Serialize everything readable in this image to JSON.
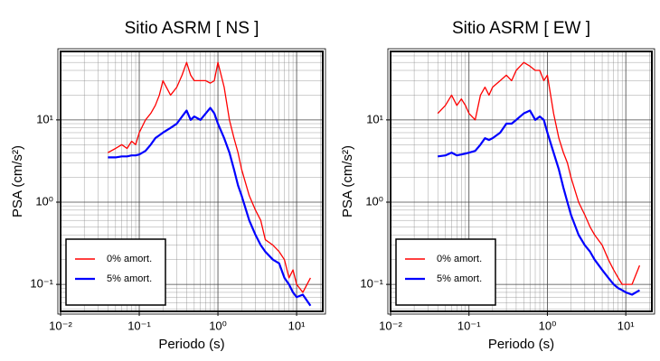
{
  "chart_data": [
    {
      "type": "line",
      "title": "Sitio ASRM [ NS ]",
      "xlabel": "Periodo (s)",
      "ylabel": "PSA (cm/s²)",
      "xscale": "log",
      "yscale": "log",
      "grid": true,
      "minor_grid": true,
      "legend": "lower left",
      "xlim": [
        0.01,
        21.5
      ],
      "ylim": [
        0.047,
        68
      ],
      "xticks": [
        {
          "value": 0.01,
          "label": "10⁻²"
        },
        {
          "value": 0.1,
          "label": "10⁻¹"
        },
        {
          "value": 1,
          "label": "10⁰"
        },
        {
          "value": 10,
          "label": "10¹"
        }
      ],
      "yticks": [
        {
          "value": 0.1,
          "label": "10⁻¹"
        },
        {
          "value": 1,
          "label": "10⁰"
        },
        {
          "value": 10,
          "label": "10¹"
        }
      ],
      "x": [
        0.04,
        0.05,
        0.06,
        0.07,
        0.08,
        0.09,
        0.1,
        0.12,
        0.14,
        0.16,
        0.18,
        0.2,
        0.25,
        0.3,
        0.35,
        0.4,
        0.45,
        0.5,
        0.6,
        0.7,
        0.8,
        0.9,
        1.0,
        1.2,
        1.4,
        1.6,
        1.8,
        2.0,
        2.5,
        3.0,
        3.5,
        4.0,
        5.0,
        6.0,
        7.0,
        8.0,
        9.0,
        10,
        12,
        15
      ],
      "series": [
        {
          "name": "0% amort.",
          "color": "#ff0000",
          "values": [
            4,
            4.5,
            5,
            4.5,
            5.5,
            5,
            7,
            10,
            12,
            15,
            20,
            30,
            20,
            25,
            35,
            50,
            35,
            30,
            30,
            30,
            28,
            30,
            50,
            25,
            10,
            6,
            4,
            2.5,
            1.2,
            0.8,
            0.6,
            0.35,
            0.3,
            0.25,
            0.2,
            0.12,
            0.15,
            0.1,
            0.08,
            0.12
          ]
        },
        {
          "name": "5% amort.",
          "color": "#0000ff",
          "values": [
            3.5,
            3.5,
            3.6,
            3.6,
            3.7,
            3.7,
            3.8,
            4.2,
            5,
            6,
            6.5,
            7,
            8,
            9,
            11,
            13,
            10,
            11,
            10,
            12,
            14,
            12,
            9,
            6,
            4,
            2.5,
            1.6,
            1.2,
            0.6,
            0.4,
            0.3,
            0.25,
            0.2,
            0.18,
            0.12,
            0.1,
            0.08,
            0.07,
            0.075,
            0.055
          ]
        }
      ]
    },
    {
      "type": "line",
      "title": "Sitio ASRM [ EW ]",
      "xlabel": "Periodo (s)",
      "ylabel": "PSA (cm/s²)",
      "xscale": "log",
      "yscale": "log",
      "grid": true,
      "minor_grid": true,
      "legend": "lower left",
      "xlim": [
        0.01,
        21.5
      ],
      "ylim": [
        0.047,
        68
      ],
      "xticks": [
        {
          "value": 0.01,
          "label": "10⁻²"
        },
        {
          "value": 0.1,
          "label": "10⁻¹"
        },
        {
          "value": 1,
          "label": "10⁰"
        },
        {
          "value": 10,
          "label": "10¹"
        }
      ],
      "yticks": [
        {
          "value": 0.1,
          "label": "10⁻¹"
        },
        {
          "value": 1,
          "label": "10⁰"
        },
        {
          "value": 10,
          "label": "10¹"
        }
      ],
      "x": [
        0.04,
        0.05,
        0.06,
        0.07,
        0.08,
        0.09,
        0.1,
        0.12,
        0.14,
        0.16,
        0.18,
        0.2,
        0.25,
        0.3,
        0.35,
        0.4,
        0.45,
        0.5,
        0.6,
        0.7,
        0.8,
        0.9,
        1.0,
        1.2,
        1.4,
        1.6,
        1.8,
        2.0,
        2.5,
        3.0,
        3.5,
        4.0,
        5.0,
        6.0,
        7.0,
        8.0,
        9.0,
        10,
        12,
        15
      ],
      "series": [
        {
          "name": "0% amort.",
          "color": "#ff0000",
          "values": [
            12,
            15,
            20,
            15,
            18,
            15,
            12,
            10,
            20,
            25,
            20,
            25,
            30,
            35,
            30,
            40,
            45,
            50,
            45,
            40,
            40,
            30,
            35,
            12,
            6,
            4,
            3,
            2,
            1,
            0.7,
            0.5,
            0.4,
            0.3,
            0.2,
            0.15,
            0.12,
            0.1,
            0.1,
            0.1,
            0.17
          ]
        },
        {
          "name": "5% amort.",
          "color": "#0000ff",
          "values": [
            3.6,
            3.7,
            4,
            3.7,
            3.8,
            3.9,
            4,
            4.2,
            5,
            6,
            5.7,
            6,
            7,
            9,
            9,
            10,
            11,
            12,
            13,
            10,
            11,
            10,
            7,
            4,
            2.5,
            1.5,
            1,
            0.7,
            0.4,
            0.3,
            0.25,
            0.2,
            0.15,
            0.12,
            0.1,
            0.09,
            0.085,
            0.08,
            0.075,
            0.085
          ]
        }
      ]
    }
  ]
}
